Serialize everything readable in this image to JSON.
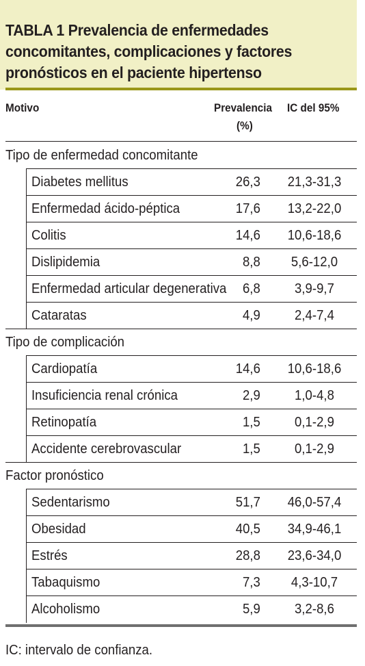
{
  "title": {
    "lines": [
      "TABLA 1 Prevalencia de enfermedades",
      "concomitantes, complicaciones y factores",
      "pronósticos en el paciente hipertenso"
    ]
  },
  "headers": {
    "motivo": "Motivo",
    "prevalencia_line1": "Prevalencia",
    "prevalencia_line2": "(%)",
    "ic": "IC del 95%"
  },
  "sections": [
    {
      "label": "Tipo de enfermedad concomitante",
      "rows": [
        {
          "label": "Diabetes mellitus",
          "value": "26,3",
          "ci": "21,3-31,3"
        },
        {
          "label": "Enfermedad ácido-péptica",
          "value": "17,6",
          "ci": "13,2-22,0"
        },
        {
          "label": "Colitis",
          "value": "14,6",
          "ci": "10,6-18,6"
        },
        {
          "label": "Dislipidemia",
          "value": "8,8",
          "ci": "5,6-12,0"
        },
        {
          "label": "Enfermedad articular degenerativa",
          "value": "6,8",
          "ci": "3,9-9,7"
        },
        {
          "label": "Cataratas",
          "value": "4,9",
          "ci": "2,4-7,4"
        }
      ]
    },
    {
      "label": "Tipo de complicación",
      "rows": [
        {
          "label": "Cardiopatía",
          "value": "14,6",
          "ci": "10,6-18,6"
        },
        {
          "label": "Insuficiencia renal crónica",
          "value": "2,9",
          "ci": "1,0-4,8"
        },
        {
          "label": "Retinopatía",
          "value": "1,5",
          "ci": "0,1-2,9"
        },
        {
          "label": "Accidente cerebrovascular",
          "value": "1,5",
          "ci": "0,1-2,9"
        }
      ]
    },
    {
      "label": "Factor pronóstico",
      "rows": [
        {
          "label": "Sedentarismo",
          "value": "51,7",
          "ci": "46,0-57,4"
        },
        {
          "label": "Obesidad",
          "value": "40,5",
          "ci": "34,9-46,1"
        },
        {
          "label": "Estrés",
          "value": "28,8",
          "ci": "23,6-34,0"
        },
        {
          "label": "Tabaquismo",
          "value": "7,3",
          "ci": "4,3-10,7"
        },
        {
          "label": "Alcoholismo",
          "value": "5,9",
          "ci": "3,2-8,6"
        }
      ]
    }
  ],
  "footnote": "IC: intervalo de confianza.",
  "colors": {
    "title_background": "#f1f0c6",
    "title_rule": "#9a9719",
    "bottom_rule": "#6f6f6f"
  }
}
